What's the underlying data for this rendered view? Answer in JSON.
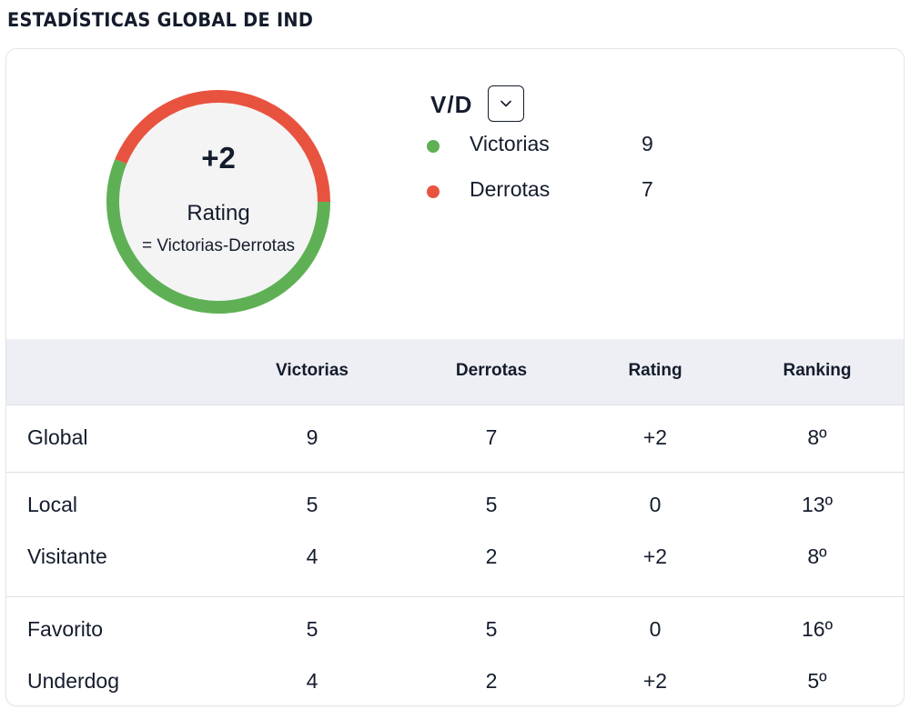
{
  "page_title": "ESTADÍSTICAS GLOBAL DE IND",
  "summary": {
    "rating_value": "+2",
    "rating_label": "Rating",
    "rating_formula": "= Victorias-Derrotas",
    "chart_data": {
      "type": "pie",
      "categories": [
        "Victorias",
        "Derrotas"
      ],
      "values": [
        9,
        7
      ],
      "colors": [
        "#5fb055",
        "#e8533f"
      ]
    }
  },
  "legend": {
    "title": "V/D",
    "dropdown_icon": "chevron-down-icon",
    "items": [
      {
        "label": "Victorias",
        "count": "9",
        "color": "#5fb055"
      },
      {
        "label": "Derrotas",
        "count": "7",
        "color": "#e8533f"
      }
    ]
  },
  "table": {
    "headers": [
      "Victorias",
      "Derrotas",
      "Rating",
      "Ranking"
    ],
    "groups": [
      {
        "rows": [
          {
            "name": "Global",
            "victorias": "9",
            "derrotas": "7",
            "rating": "+2",
            "ranking": "8º"
          }
        ]
      },
      {
        "rows": [
          {
            "name": "Local",
            "victorias": "5",
            "derrotas": "5",
            "rating": "0",
            "ranking": "13º"
          },
          {
            "name": "Visitante",
            "victorias": "4",
            "derrotas": "2",
            "rating": "+2",
            "ranking": "8º"
          }
        ]
      },
      {
        "rows": [
          {
            "name": "Favorito",
            "victorias": "5",
            "derrotas": "5",
            "rating": "0",
            "ranking": "16º"
          },
          {
            "name": "Underdog",
            "victorias": "4",
            "derrotas": "2",
            "rating": "+2",
            "ranking": "5º"
          }
        ]
      }
    ]
  }
}
